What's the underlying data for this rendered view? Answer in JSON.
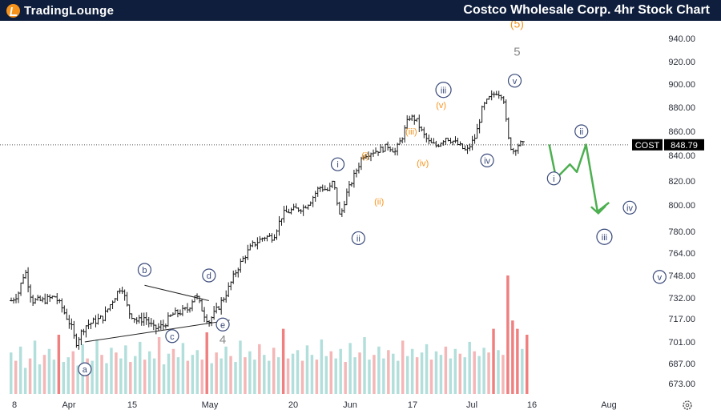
{
  "header": {
    "logo_word1": "TradingLounge",
    "logo_word2": "",
    "title": "Costco Wholesale Corp. 4hr Stock Chart"
  },
  "chart_data": {
    "type": "candlestick",
    "ticker": "COST",
    "last_price": "848.79",
    "price_line": 848.79,
    "y_ticks": [
      "940.00",
      "920.00",
      "900.00",
      "880.00",
      "860.00",
      "840.00",
      "820.00",
      "800.00",
      "780.00",
      "764.00",
      "748.00",
      "732.00",
      "717.00",
      "701.00",
      "687.00",
      "673.00"
    ],
    "y_tick_values": [
      940,
      920,
      900,
      880,
      860,
      840,
      820,
      800,
      780,
      764,
      748,
      732,
      717,
      701,
      687,
      673
    ],
    "x_ticks": [
      "8",
      "Apr",
      "15",
      "May",
      "20",
      "Jun",
      "17",
      "Jul",
      "16",
      "Aug"
    ],
    "price_path": [
      [
        0,
        730
      ],
      [
        0.03,
        735
      ],
      [
        0.06,
        752
      ],
      [
        0.09,
        730
      ],
      [
        0.14,
        730
      ],
      [
        0.19,
        733
      ],
      [
        0.22,
        725
      ],
      [
        0.26,
        712
      ],
      [
        0.28,
        700
      ],
      [
        0.32,
        712
      ],
      [
        0.36,
        715
      ],
      [
        0.4,
        718
      ],
      [
        0.44,
        730
      ],
      [
        0.48,
        741
      ],
      [
        0.51,
        722
      ],
      [
        0.55,
        715
      ],
      [
        0.58,
        718
      ],
      [
        0.62,
        710
      ],
      [
        0.66,
        712
      ],
      [
        0.7,
        720
      ],
      [
        0.74,
        722
      ],
      [
        0.77,
        724
      ],
      [
        0.8,
        735
      ],
      [
        0.84,
        720
      ],
      [
        0.86,
        715
      ],
      [
        0.9,
        725
      ],
      [
        0.94,
        737
      ],
      [
        0.98,
        752
      ],
      [
        1.02,
        763
      ],
      [
        1.05,
        770
      ],
      [
        1.1,
        776
      ],
      [
        1.14,
        776
      ],
      [
        1.18,
        793
      ],
      [
        1.22,
        796
      ],
      [
        1.27,
        798
      ],
      [
        1.3,
        803
      ],
      [
        1.34,
        815
      ],
      [
        1.38,
        812
      ],
      [
        1.4,
        820
      ],
      [
        1.43,
        790
      ],
      [
        1.46,
        810
      ],
      [
        1.5,
        828
      ],
      [
        1.53,
        840
      ],
      [
        1.57,
        843
      ],
      [
        1.61,
        845
      ],
      [
        1.64,
        848
      ],
      [
        1.67,
        843
      ],
      [
        1.7,
        855
      ],
      [
        1.73,
        872
      ],
      [
        1.76,
        870
      ],
      [
        1.79,
        858
      ],
      [
        1.82,
        850
      ],
      [
        1.85,
        848
      ],
      [
        1.89,
        855
      ],
      [
        1.92,
        852
      ],
      [
        1.95,
        848
      ],
      [
        1.98,
        843
      ],
      [
        2.02,
        856
      ],
      [
        2.05,
        880
      ],
      [
        2.08,
        888
      ],
      [
        2.11,
        893
      ],
      [
        2.14,
        890
      ],
      [
        2.16,
        855
      ],
      [
        2.18,
        843
      ],
      [
        2.21,
        850
      ],
      [
        2.23,
        848.79
      ]
    ],
    "volume": [
      0.35,
      0.28,
      0.4,
      0.22,
      0.3,
      0.45,
      0.25,
      0.33,
      0.38,
      0.29,
      0.5,
      0.27,
      0.31,
      0.36,
      0.24,
      0.42,
      0.3,
      0.28,
      0.46,
      0.33,
      0.26,
      0.39,
      0.35,
      0.3,
      0.41,
      0.27,
      0.32,
      0.44,
      0.29,
      0.36,
      0.3,
      0.48,
      0.25,
      0.34,
      0.38,
      0.31,
      0.43,
      0.28,
      0.33,
      0.37,
      0.29,
      0.52,
      0.26,
      0.35,
      0.3,
      0.4,
      0.32,
      0.27,
      0.45,
      0.31,
      0.36,
      0.29,
      0.42,
      0.33,
      0.28,
      0.39,
      0.31,
      0.55,
      0.3,
      0.34,
      0.37,
      0.28,
      0.41,
      0.33,
      0.29,
      0.46,
      0.32,
      0.36,
      0.3,
      0.38,
      0.27,
      0.43,
      0.31,
      0.35,
      0.48,
      0.29,
      0.33,
      0.4,
      0.3,
      0.37,
      0.34,
      0.28,
      0.45,
      0.32,
      0.38,
      0.31,
      0.35,
      0.42,
      0.29,
      0.36,
      0.33,
      0.4,
      0.3,
      0.38,
      0.34,
      0.31,
      0.44,
      0.36,
      0.32,
      0.39,
      0.35,
      0.55,
      0.37,
      0.33,
      1.0,
      0.62,
      0.55,
      0.38,
      0.5
    ],
    "wave_labels": [
      {
        "text": "a",
        "circled": true,
        "color": "#3a4a7a",
        "x": 0.32,
        "y": 683
      },
      {
        "text": "b",
        "circled": true,
        "color": "#3a4a7a",
        "x": 0.58,
        "y": 752
      },
      {
        "text": "c",
        "circled": true,
        "color": "#3a4a7a",
        "x": 0.7,
        "y": 705
      },
      {
        "text": "d",
        "circled": true,
        "color": "#3a4a7a",
        "x": 0.86,
        "y": 748
      },
      {
        "text": "e",
        "circled": true,
        "color": "#3a4a7a",
        "x": 0.92,
        "y": 713
      },
      {
        "text": "4",
        "circled": false,
        "color": "#888888",
        "x": 0.92,
        "y": 702
      },
      {
        "text": "i",
        "circled": true,
        "color": "#3a4a7a",
        "x": 1.42,
        "y": 833
      },
      {
        "text": "ii",
        "circled": true,
        "color": "#3a4a7a",
        "x": 1.51,
        "y": 775
      },
      {
        "text": "iii",
        "circled": true,
        "color": "#3a4a7a",
        "x": 1.88,
        "y": 895
      },
      {
        "text": "iv",
        "circled": true,
        "color": "#3a4a7a",
        "x": 2.07,
        "y": 836
      },
      {
        "text": "v",
        "circled": true,
        "color": "#3a4a7a",
        "x": 2.19,
        "y": 903
      },
      {
        "text": "5",
        "circled": false,
        "color": "#888888",
        "x": 2.2,
        "y": 928
      },
      {
        "text": "(5)",
        "circled": false,
        "color": "#f7931a",
        "x": 2.2,
        "y": 952
      },
      {
        "text": "(i)",
        "circled": false,
        "color": "#f7931a",
        "x": 1.54,
        "y": 840
      },
      {
        "text": "(ii)",
        "circled": false,
        "color": "#f7931a",
        "x": 1.6,
        "y": 803
      },
      {
        "text": "(iii)",
        "circled": false,
        "color": "#f7931a",
        "x": 1.74,
        "y": 860
      },
      {
        "text": "(iv)",
        "circled": false,
        "color": "#f7931a",
        "x": 1.79,
        "y": 834
      },
      {
        "text": "(v)",
        "circled": false,
        "color": "#f7931a",
        "x": 1.87,
        "y": 882
      },
      {
        "text": "i",
        "circled": true,
        "color": "#3a4a7a",
        "x": 2.36,
        "y": 822
      },
      {
        "text": "ii",
        "circled": true,
        "color": "#3a4a7a",
        "x": 2.48,
        "y": 860
      },
      {
        "text": "iii",
        "circled": true,
        "color": "#3a4a7a",
        "x": 2.58,
        "y": 776
      },
      {
        "text": "iv",
        "circled": true,
        "color": "#3a4a7a",
        "x": 2.69,
        "y": 798
      },
      {
        "text": "v",
        "circled": true,
        "color": "#3a4a7a",
        "x": 2.82,
        "y": 747
      }
    ],
    "triangle_lines": [
      {
        "from": [
          0.32,
          701
        ],
        "to": [
          0.95,
          716
        ]
      },
      {
        "from": [
          0.58,
          741
        ],
        "to": [
          0.86,
          730
        ]
      }
    ],
    "projection": [
      [
        2.34,
        849
      ],
      [
        2.37,
        822
      ],
      [
        2.43,
        833
      ],
      [
        2.46,
        827
      ],
      [
        2.5,
        849
      ],
      [
        2.55,
        795
      ],
      [
        2.6,
        802
      ]
    ],
    "colors": {
      "bars": "#1a1a1a",
      "volume_up": "#b2dfdb",
      "volume_down": "#f4b6b6",
      "volume_spike": "#f08080",
      "projection": "#4caf50",
      "price_line": "#555555",
      "label_circle": "#3a4a7a",
      "price_tag_bg": "#000000"
    }
  }
}
